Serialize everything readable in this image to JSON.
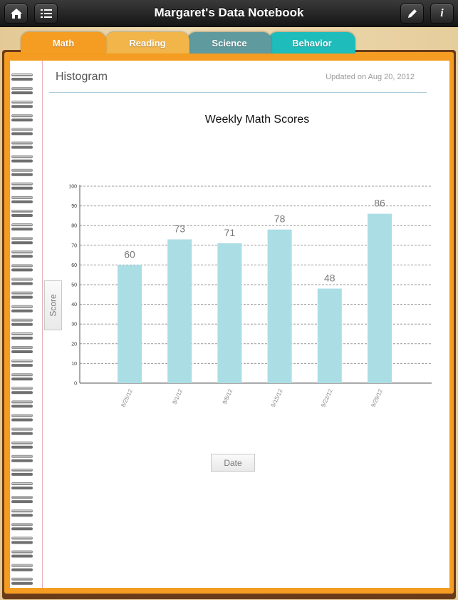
{
  "app": {
    "title": "Margaret's Data Notebook"
  },
  "toolbar": {
    "home_icon": "home-icon",
    "list_icon": "list-icon",
    "edit_icon": "pencil-icon",
    "info_icon": "info-icon",
    "info_label": "i"
  },
  "tabs": [
    {
      "label": "Math",
      "color": "#f49d22"
    },
    {
      "label": "Reading",
      "color": "#f2b54a"
    },
    {
      "label": "Science",
      "color": "#5f9a9e"
    },
    {
      "label": "Behavior",
      "color": "#1ebdbc"
    }
  ],
  "page": {
    "heading": "Histogram",
    "updated": "Updated on Aug 20, 2012"
  },
  "chart_data": {
    "type": "bar",
    "title": "Weekly Math Scores",
    "xlabel": "Date",
    "ylabel": "Score",
    "categories": [
      "8/25/12",
      "9/1/12",
      "9/8/12",
      "9/15/12",
      "9/22/12",
      "9/29/12"
    ],
    "values": [
      60,
      73,
      71,
      78,
      48,
      86
    ],
    "ylim": [
      0,
      100
    ],
    "yticks": [
      0,
      10,
      20,
      30,
      40,
      50,
      60,
      70,
      80,
      90,
      100
    ],
    "grid": true,
    "bar_color": "#abdde5"
  }
}
